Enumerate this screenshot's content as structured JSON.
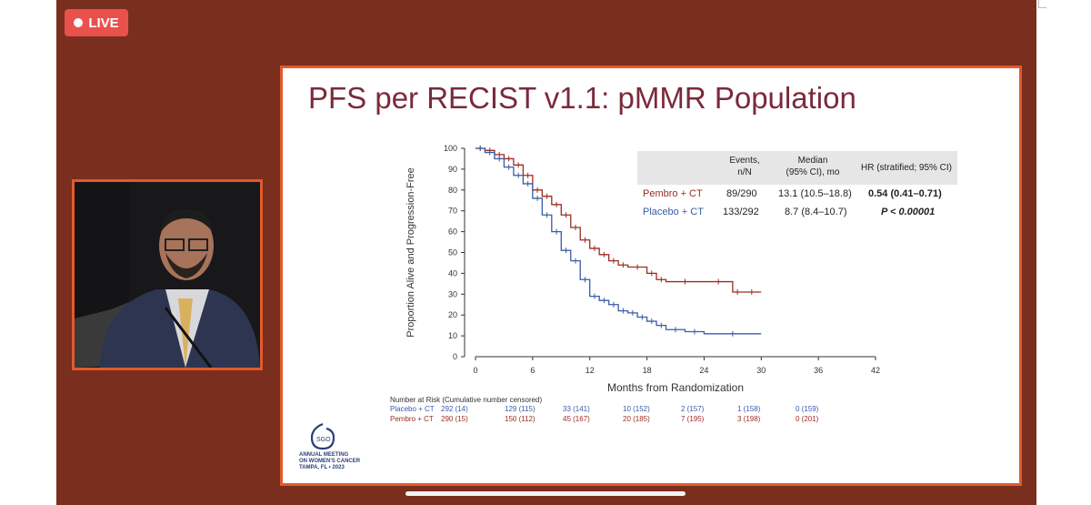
{
  "live": {
    "label": "LIVE"
  },
  "slide": {
    "title": "PFS per RECIST v1.1: pMMR Population",
    "table": {
      "headers": [
        "Events,\nn/N",
        "Median\n(95% CI), mo",
        "HR (stratified; 95% CI)"
      ],
      "rows": [
        {
          "arm": "Pembro + CT",
          "events": "89/290",
          "median": "13.1 (10.5–18.8)"
        },
        {
          "arm": "Placebo + CT",
          "events": "133/292",
          "median": "8.7 (8.4–10.7)"
        }
      ],
      "hr": "0.54 (0.41–0.71)",
      "p": "P < 0.00001"
    },
    "risk": {
      "title": "Number at Risk (Cumulative number censored)",
      "rows": [
        {
          "arm": "Placebo + CT",
          "color": "#3a5ca8",
          "values": [
            "292 (14)",
            "129 (115)",
            "33 (141)",
            "10 (152)",
            "2 (157)",
            "1 (158)",
            "0 (159)"
          ]
        },
        {
          "arm": "Pembro + CT",
          "color": "#9b2d20",
          "values": [
            "290 (15)",
            "150 (112)",
            "45 (167)",
            "20 (185)",
            "7 (195)",
            "3 (198)",
            "0 (201)"
          ]
        }
      ]
    },
    "logo": {
      "name": "SGO",
      "lines": [
        "ANNUAL MEETING",
        "ON WOMEN'S CANCER",
        "TAMPA, FL • 2023"
      ]
    }
  },
  "chart_data": {
    "type": "line",
    "xlabel": "Months from Randomization",
    "ylabel": "Proportion Alive and Progression-Free",
    "xlim": [
      0,
      42
    ],
    "ylim": [
      0,
      100
    ],
    "xticks": [
      0,
      6,
      12,
      18,
      24,
      30,
      36,
      42
    ],
    "yticks": [
      0,
      10,
      20,
      30,
      40,
      50,
      60,
      70,
      80,
      90,
      100
    ],
    "series": [
      {
        "name": "Pembro + CT",
        "color": "#9b2d20",
        "x": [
          0,
          1,
          2,
          3,
          4,
          5,
          6,
          7,
          8,
          9,
          10,
          11,
          12,
          13,
          14,
          15,
          16,
          18,
          19,
          20,
          24,
          27,
          28,
          30
        ],
        "y": [
          100,
          99,
          97,
          95,
          92,
          87,
          80,
          77,
          73,
          68,
          62,
          56,
          52,
          49,
          46,
          44,
          43,
          40,
          37,
          36,
          36,
          31,
          31,
          31
        ]
      },
      {
        "name": "Placebo + CT",
        "color": "#3a5ca8",
        "x": [
          0,
          1,
          2,
          3,
          4,
          5,
          6,
          7,
          8,
          9,
          10,
          11,
          12,
          13,
          14,
          15,
          16,
          17,
          18,
          19,
          20,
          22,
          24,
          30
        ],
        "y": [
          100,
          98,
          95,
          91,
          87,
          83,
          76,
          68,
          60,
          51,
          46,
          37,
          29,
          27,
          25,
          22,
          21,
          19,
          17,
          15,
          13,
          12,
          11,
          11
        ]
      }
    ]
  }
}
